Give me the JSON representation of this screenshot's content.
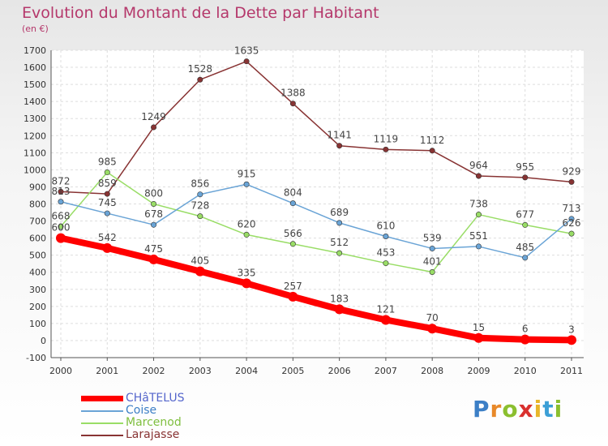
{
  "header": {
    "title": "Evolution du Montant de la Dette par Habitant",
    "subtitle": "(en €)"
  },
  "logo": {
    "text": "Proxiti"
  },
  "chart_data": {
    "type": "line",
    "title": "Evolution du Montant de la Dette par Habitant",
    "ylabel": "(en €)",
    "xlabel": "",
    "categories": [
      "2000",
      "2001",
      "2002",
      "2003",
      "2004",
      "2005",
      "2006",
      "2007",
      "2008",
      "2009",
      "2010",
      "2011"
    ],
    "ylim": [
      -100,
      1700
    ],
    "yticks": [
      "-100",
      "0",
      "100",
      "200",
      "300",
      "400",
      "500",
      "600",
      "700",
      "800",
      "900",
      "1000",
      "1100",
      "1200",
      "1300",
      "1400",
      "1500",
      "1600",
      "1700"
    ],
    "grid": true,
    "legend_position": "bottom-left",
    "series": [
      {
        "name": "CHâTELUS",
        "color": "#ff0000",
        "label_color": "#5566cc",
        "values": [
          600,
          542,
          475,
          405,
          335,
          257,
          183,
          121,
          70,
          15,
          6,
          3
        ],
        "labels": [
          "600",
          "542",
          "475",
          "405",
          "335",
          "257",
          "183",
          "121",
          "70",
          "15",
          "6",
          "3"
        ]
      },
      {
        "name": "Coise",
        "color": "#6aa4d6",
        "label_color": "#3c7fc6",
        "values": [
          813,
          745,
          678,
          856,
          915,
          804,
          689,
          610,
          539,
          551,
          485,
          713
        ],
        "labels": [
          "813",
          "745",
          "678",
          "856",
          "915",
          "804",
          "689",
          "610",
          "539",
          "551",
          "485",
          "713"
        ]
      },
      {
        "name": "Marcenod",
        "color": "#99dd66",
        "label_color": "#7fbf3f",
        "values": [
          668,
          985,
          800,
          728,
          620,
          566,
          512,
          453,
          401,
          738,
          677,
          626
        ],
        "labels": [
          "668",
          "985",
          "800",
          "728",
          "620",
          "566",
          "512",
          "453",
          "401",
          "738",
          "677",
          "626"
        ]
      },
      {
        "name": "Larajasse",
        "color": "#883333",
        "label_color": "#883333",
        "values": [
          872,
          859,
          1249,
          1528,
          1635,
          1388,
          1141,
          1119,
          1112,
          964,
          955,
          929
        ],
        "labels": [
          "872",
          "859",
          "1249",
          "1528",
          "1635",
          "1388",
          "1141",
          "1119",
          "1112",
          "964",
          "955",
          "929"
        ]
      }
    ]
  }
}
